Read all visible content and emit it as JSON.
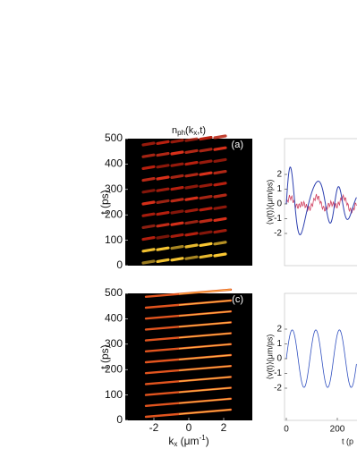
{
  "figure": {
    "title": {
      "base": "n",
      "sub1": "ph",
      "mid": "(k",
      "sub2": "x",
      "end": ",t)"
    },
    "panel_a": {
      "label": "(a)",
      "y_label": "t (ps)",
      "y_ticks": [
        0,
        100,
        200,
        300,
        400,
        500
      ]
    },
    "panel_b": {
      "y_label": "⟨v(t)⟩(μm/ps)",
      "y_ticks": [
        2,
        1,
        0,
        -1,
        -2
      ]
    },
    "panel_c": {
      "label": "(c)",
      "y_label": "t (ps)",
      "y_ticks": [
        0,
        100,
        200,
        300,
        400,
        500
      ],
      "x_ticks": [
        -2,
        0,
        2
      ],
      "x_label": {
        "base": "k",
        "sub": "x",
        "unit": " (μm",
        "sup": "-1",
        "close": ")"
      }
    },
    "panel_d": {
      "y_label": "⟨v(t)⟩(μm/ps)",
      "y_ticks": [
        2,
        1,
        0,
        -1,
        -2
      ],
      "x_ticks": [
        0,
        200
      ],
      "x_label": "t (p"
    }
  }
}
